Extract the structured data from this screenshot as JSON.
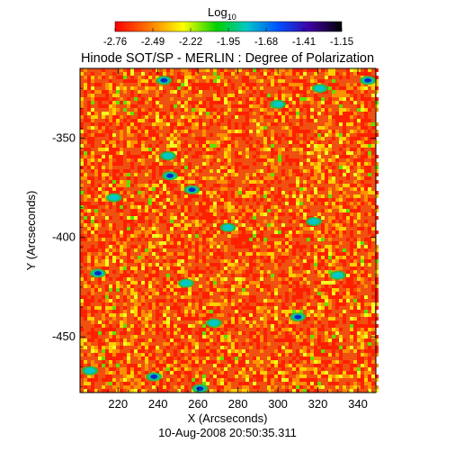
{
  "chart_data": {
    "type": "heatmap",
    "title": "Hinode SOT/SP - MERLIN : Degree of Polarization",
    "xlabel": "X (Arcseconds)",
    "ylabel": "Y (Arcseconds)",
    "timestamp": "10-Aug-2008 20:50:35.311",
    "colorbar": {
      "label_main": "Log",
      "label_sub": "10",
      "range": [
        -2.76,
        -1.15
      ],
      "ticks": [
        "-2.76",
        "-2.49",
        "-2.22",
        "-1.95",
        "-1.68",
        "-1.41",
        "-1.15"
      ],
      "stops": [
        "#ff0000",
        "#ff7800",
        "#ffff00",
        "#00d000",
        "#00c8c8",
        "#0050ff",
        "#4000a0",
        "#000000"
      ]
    },
    "xlim": [
      201,
      349
    ],
    "ylim": [
      -478,
      -315
    ],
    "xticks": [
      220,
      240,
      260,
      280,
      300,
      320,
      340
    ],
    "yticks": [
      -350,
      -400,
      -450
    ],
    "xtick_labels": [
      "220",
      "240",
      "260",
      "280",
      "300",
      "320",
      "340"
    ],
    "ytick_labels": [
      "-350",
      "-400",
      "-450"
    ],
    "background_level": "red-orange noise with yellow/green mottling; sparse cyan and blue network patches",
    "patches": [
      {
        "x": 243,
        "y": -321,
        "level": "blue"
      },
      {
        "x": 321,
        "y": -325,
        "level": "cyan"
      },
      {
        "x": 345,
        "y": -321,
        "level": "blue"
      },
      {
        "x": 245,
        "y": -359,
        "level": "cyan"
      },
      {
        "x": 246,
        "y": -369,
        "level": "blue"
      },
      {
        "x": 257,
        "y": -376,
        "level": "blue"
      },
      {
        "x": 218,
        "y": -380,
        "level": "cyan"
      },
      {
        "x": 210,
        "y": -418,
        "level": "blue"
      },
      {
        "x": 254,
        "y": -423,
        "level": "cyan"
      },
      {
        "x": 310,
        "y": -440,
        "level": "blue"
      },
      {
        "x": 330,
        "y": -419,
        "level": "cyan"
      },
      {
        "x": 268,
        "y": -443,
        "level": "cyan"
      },
      {
        "x": 206,
        "y": -467,
        "level": "cyan"
      },
      {
        "x": 261,
        "y": -476,
        "level": "blue"
      },
      {
        "x": 238,
        "y": -470,
        "level": "blue"
      },
      {
        "x": 300,
        "y": -333,
        "level": "cyan"
      },
      {
        "x": 275,
        "y": -395,
        "level": "cyan"
      },
      {
        "x": 318,
        "y": -392,
        "level": "cyan"
      }
    ]
  }
}
